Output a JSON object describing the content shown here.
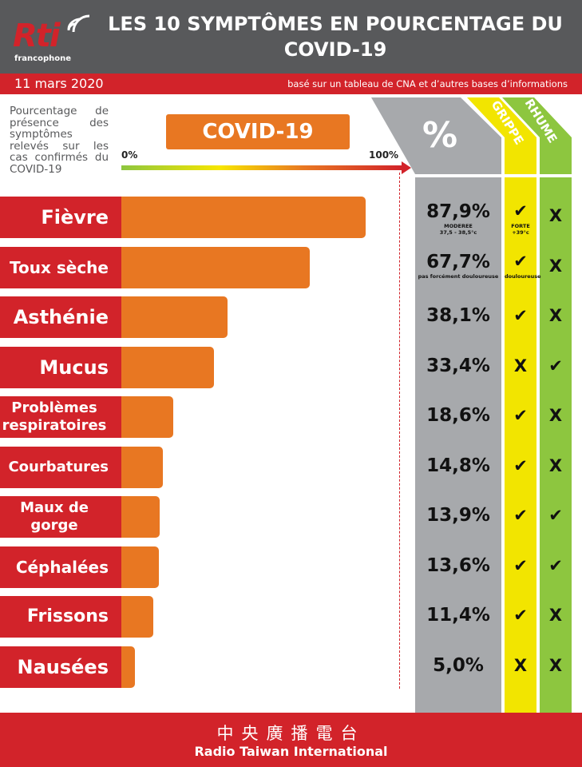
{
  "logo": {
    "name": "Rti",
    "sub": "francophone"
  },
  "title": "LES 10 SYMPTÔMES EN POURCENTAGE DU COVID-19",
  "date": "11 mars 2020",
  "source": "basé sur un tableau de CNA et d’autres bases d’informations",
  "description": "Pourcentage de présence des symptômes relevés sur les cas confirmés du COVID-19",
  "covid_label": "COVID-19",
  "pct_header": "%",
  "grippe_header": "GRIPPE",
  "rhume_header": "RHUME",
  "check_symbol": "✔",
  "cross_symbol": "X",
  "colors": {
    "red": "#d2232a",
    "orange": "#e87722",
    "grey": "#a7a9ac",
    "header_grey": "#58595b",
    "grippe": "#f2e500",
    "rhume": "#8dc63f"
  },
  "chart_data": {
    "type": "bar",
    "orientation": "horizontal",
    "title": "COVID-19",
    "xlim": [
      0,
      100
    ],
    "tick_labels": [
      "0%",
      "100%"
    ],
    "categories": [
      "Fièvre",
      "Toux sèche",
      "Asthénie",
      "Mucus",
      "Problèmes respiratoires",
      "Courbatures",
      "Maux de gorge",
      "Céphalées",
      "Frissons",
      "Nausées"
    ],
    "values": [
      87.9,
      67.7,
      38.1,
      33.4,
      18.6,
      14.8,
      13.9,
      13.6,
      11.4,
      5.0
    ],
    "value_labels": [
      "87,9%",
      "67,7%",
      "38,1%",
      "33,4%",
      "18,6%",
      "14,8%",
      "13,9%",
      "13,6%",
      "11,4%",
      "5,0%"
    ],
    "value_notes": [
      "MODEREE\n37,5 - 38,5°c",
      "pas forcément douloureuse",
      "",
      "",
      "",
      "",
      "",
      "",
      "",
      ""
    ],
    "grippe": [
      "check",
      "check",
      "check",
      "cross",
      "check",
      "check",
      "check",
      "check",
      "check",
      "cross"
    ],
    "grippe_notes": [
      "FORTE\n+39°c",
      "douloureuse",
      "",
      "",
      "",
      "",
      "",
      "",
      "",
      ""
    ],
    "rhume": [
      "cross",
      "cross",
      "cross",
      "check",
      "cross",
      "cross",
      "check",
      "check",
      "cross",
      "cross"
    ]
  },
  "footer": {
    "chinese": "中央廣播電台",
    "english": "Radio Taiwan International"
  }
}
